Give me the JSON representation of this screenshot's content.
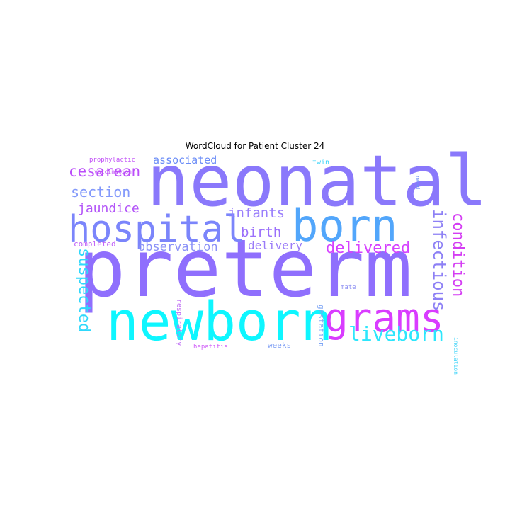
{
  "title": "WordCloud for Patient Cluster 24",
  "chart_data": {
    "type": "wordcloud",
    "title": "WordCloud for Patient Cluster 24",
    "words": [
      {
        "text": "preterm",
        "weight": 1.0,
        "color": "#8f6ffd",
        "orientation": "horizontal"
      },
      {
        "text": "neonatal",
        "weight": 0.9,
        "color": "#8a78fb",
        "orientation": "horizontal"
      },
      {
        "text": "newborn",
        "weight": 0.82,
        "color": "#0ef6ff",
        "orientation": "horizontal"
      },
      {
        "text": "hospital",
        "weight": 0.62,
        "color": "#7b85fb",
        "orientation": "horizontal"
      },
      {
        "text": "born",
        "weight": 0.62,
        "color": "#52a6fb",
        "orientation": "horizontal"
      },
      {
        "text": "grams",
        "weight": 0.6,
        "color": "#d93cff",
        "orientation": "horizontal"
      },
      {
        "text": "liveborn",
        "weight": 0.33,
        "color": "#2de6fc",
        "orientation": "horizontal"
      },
      {
        "text": "infectious",
        "weight": 0.3,
        "color": "#8d80f5",
        "orientation": "vertical"
      },
      {
        "text": "suspected",
        "weight": 0.3,
        "color": "#2fd8fb",
        "orientation": "vertical"
      },
      {
        "text": "condition",
        "weight": 0.28,
        "color": "#d43df3",
        "orientation": "vertical"
      },
      {
        "text": "delivered",
        "weight": 0.27,
        "color": "#d541ff",
        "orientation": "horizontal"
      },
      {
        "text": "cesarean",
        "weight": 0.26,
        "color": "#bb4efa",
        "orientation": "horizontal"
      },
      {
        "text": "section",
        "weight": 0.24,
        "color": "#8399fb",
        "orientation": "horizontal"
      },
      {
        "text": "infants",
        "weight": 0.24,
        "color": "#9a7ffc",
        "orientation": "horizontal"
      },
      {
        "text": "birth",
        "weight": 0.23,
        "color": "#9b70fb",
        "orientation": "horizontal"
      },
      {
        "text": "jaundice",
        "weight": 0.23,
        "color": "#b355f8",
        "orientation": "horizontal"
      },
      {
        "text": "observation",
        "weight": 0.2,
        "color": "#8a91f7",
        "orientation": "horizontal"
      },
      {
        "text": "delivery",
        "weight": 0.2,
        "color": "#9a7bf8",
        "orientation": "horizontal"
      },
      {
        "text": "associated",
        "weight": 0.18,
        "color": "#6a8cf7",
        "orientation": "horizontal"
      },
      {
        "text": "completed",
        "weight": 0.13,
        "color": "#bf5ff7",
        "orientation": "horizontal"
      },
      {
        "text": "weeks",
        "weight": 0.13,
        "color": "#81a0f4",
        "orientation": "horizontal"
      },
      {
        "text": "gestation",
        "weight": 0.11,
        "color": "#7ca4f5",
        "orientation": "vertical"
      },
      {
        "text": "respiratory",
        "weight": 0.1,
        "color": "#c070f4",
        "orientation": "vertical"
      },
      {
        "text": "prophylactic",
        "weight": 0.1,
        "color": "#c04ef7",
        "orientation": "horizontal"
      },
      {
        "text": "vaccination",
        "weight": 0.09,
        "color": "#c04ef7",
        "orientation": "horizontal"
      },
      {
        "text": "twin",
        "weight": 0.1,
        "color": "#3ed4f9",
        "orientation": "horizontal"
      },
      {
        "text": "need",
        "weight": 0.09,
        "color": "#6f90f6",
        "orientation": "vertical"
      },
      {
        "text": "mate",
        "weight": 0.09,
        "color": "#8c8ff2",
        "orientation": "horizontal"
      },
      {
        "text": "inoculation",
        "weight": 0.09,
        "color": "#4ad6f9",
        "orientation": "vertical"
      },
      {
        "text": "hepatitis",
        "weight": 0.09,
        "color": "#cf5cf8",
        "orientation": "horizontal"
      }
    ]
  }
}
